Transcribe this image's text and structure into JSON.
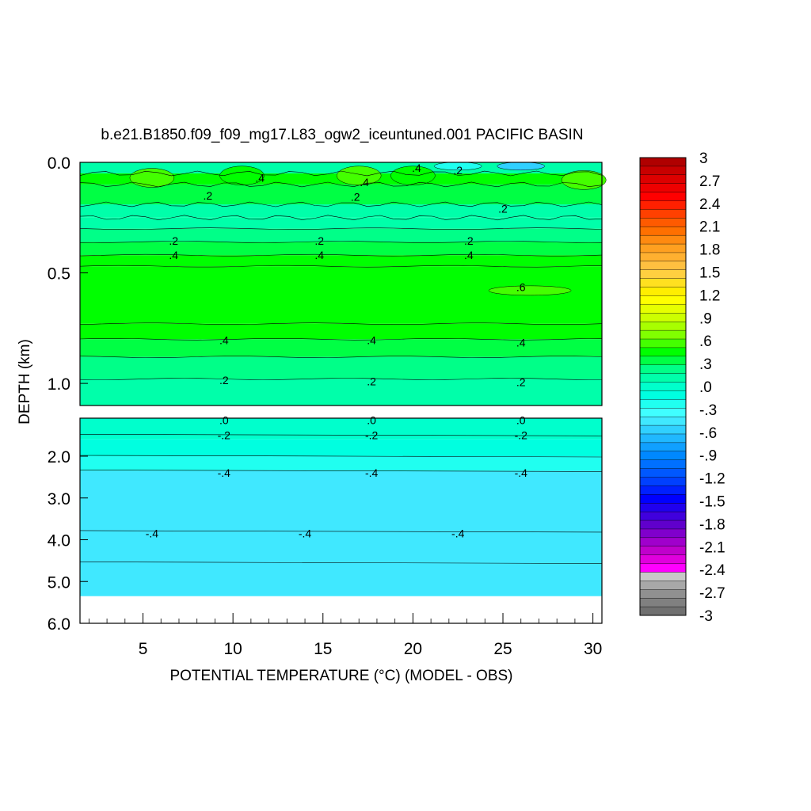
{
  "chart_data": {
    "type": "heatmap",
    "title": "b.e21.B1850.f09_f09_mg17.L83_ogw2_iceuntuned.001 PACIFIC BASIN",
    "xlabel": "POTENTIAL TEMPERATURE (°C) (MODEL - OBS)",
    "ylabel": "DEPTH (km)",
    "xlim": [
      1.5,
      30.5
    ],
    "x_ticks": [
      5,
      10,
      15,
      20,
      25,
      30
    ],
    "x_tick_labels": [
      "5",
      "10",
      "15",
      "20",
      "25",
      "30"
    ],
    "upper_panel": {
      "ylim": [
        0.0,
        1.1
      ],
      "y_ticks": [
        0.0,
        0.5,
        1.0
      ],
      "y_tick_labels": [
        "0.0",
        "0.5",
        "1.0"
      ]
    },
    "lower_panel": {
      "ylim": [
        1.0,
        6.0
      ],
      "y_ticks": [
        2.0,
        3.0,
        4.0,
        5.0,
        6.0
      ],
      "y_tick_labels": [
        "2.0",
        "3.0",
        "4.0",
        "5.0",
        "6.0"
      ]
    },
    "depth_bands": [
      {
        "top": 0.0,
        "bottom": 0.05,
        "value": 0.15
      },
      {
        "top": 0.05,
        "bottom": 0.1,
        "value": 0.45
      },
      {
        "top": 0.1,
        "bottom": 0.19,
        "value": 0.3
      },
      {
        "top": 0.19,
        "bottom": 0.25,
        "value": 0.1
      },
      {
        "top": 0.25,
        "bottom": 0.3,
        "value": 0.15
      },
      {
        "top": 0.3,
        "bottom": 0.36,
        "value": 0.2
      },
      {
        "top": 0.36,
        "bottom": 0.42,
        "value": 0.3
      },
      {
        "top": 0.42,
        "bottom": 0.47,
        "value": 0.4
      },
      {
        "top": 0.47,
        "bottom": 0.73,
        "value": 0.5
      },
      {
        "top": 0.73,
        "bottom": 0.8,
        "value": 0.45
      },
      {
        "top": 0.8,
        "bottom": 0.88,
        "value": 0.35
      },
      {
        "top": 0.88,
        "bottom": 0.98,
        "value": 0.25
      },
      {
        "top": 0.98,
        "bottom": 1.1,
        "value": 0.15
      },
      {
        "top": 1.1,
        "bottom": 1.6,
        "value": -0.05
      },
      {
        "top": 1.6,
        "bottom": 2.0,
        "value": -0.15
      },
      {
        "top": 2.0,
        "bottom": 2.35,
        "value": -0.25
      },
      {
        "top": 2.35,
        "bottom": 5.35,
        "value": -0.4
      }
    ],
    "warm_spots": [
      {
        "x": 5.5,
        "depth": 0.07,
        "value": 0.6
      },
      {
        "x": 10.5,
        "depth": 0.06,
        "value": 0.5
      },
      {
        "x": 17.0,
        "depth": 0.06,
        "value": 0.6
      },
      {
        "x": 20.0,
        "depth": 0.06,
        "value": 0.5
      },
      {
        "x": 29.5,
        "depth": 0.08,
        "value": 0.6
      },
      {
        "x": 26.5,
        "depth": 0.58,
        "value": 0.6
      }
    ],
    "cool_spots": [
      {
        "x": 26.0,
        "depth": 0.01,
        "value": -0.6
      },
      {
        "x": 22.5,
        "depth": 0.01,
        "value": -0.2
      }
    ],
    "contour_labels": [
      {
        "text": ".4",
        "x": 11.5,
        "depth": 0.07
      },
      {
        "text": ".4",
        "x": 17.3,
        "depth": 0.09
      },
      {
        "text": ".4",
        "x": 20.2,
        "depth": 0.025
      },
      {
        "text": ".2",
        "x": 22.5,
        "depth": 0.035
      },
      {
        "text": ".2",
        "x": 8.6,
        "depth": 0.15
      },
      {
        "text": ".2",
        "x": 16.8,
        "depth": 0.155
      },
      {
        "text": ".2",
        "x": 25.0,
        "depth": 0.21
      },
      {
        "text": ".2",
        "x": 6.7,
        "depth": 0.355
      },
      {
        "text": ".2",
        "x": 14.8,
        "depth": 0.355
      },
      {
        "text": ".2",
        "x": 23.1,
        "depth": 0.355
      },
      {
        "text": ".4",
        "x": 6.7,
        "depth": 0.42
      },
      {
        "text": ".4",
        "x": 14.8,
        "depth": 0.42
      },
      {
        "text": ".4",
        "x": 23.1,
        "depth": 0.42
      },
      {
        "text": ".6",
        "x": 26.0,
        "depth": 0.565
      },
      {
        "text": ".4",
        "x": 9.5,
        "depth": 0.805
      },
      {
        "text": ".4",
        "x": 17.7,
        "depth": 0.805
      },
      {
        "text": ".4",
        "x": 26.0,
        "depth": 0.815
      },
      {
        "text": ".2",
        "x": 9.5,
        "depth": 0.985
      },
      {
        "text": ".2",
        "x": 17.7,
        "depth": 0.99
      },
      {
        "text": ".2",
        "x": 26.0,
        "depth": 0.995
      },
      {
        "text": ".0",
        "x": 9.5,
        "depth": 1.15
      },
      {
        "text": ".0",
        "x": 17.7,
        "depth": 1.15
      },
      {
        "text": ".0",
        "x": 26.0,
        "depth": 1.15
      },
      {
        "text": "-.2",
        "x": 9.5,
        "depth": 1.5
      },
      {
        "text": "-.2",
        "x": 17.7,
        "depth": 1.5
      },
      {
        "text": "-.2",
        "x": 26.0,
        "depth": 1.5
      },
      {
        "text": "-.4",
        "x": 9.5,
        "depth": 2.4
      },
      {
        "text": "-.4",
        "x": 17.7,
        "depth": 2.4
      },
      {
        "text": "-.4",
        "x": 26.0,
        "depth": 2.4
      },
      {
        "text": "-.4",
        "x": 5.5,
        "depth": 3.85
      },
      {
        "text": "-.4",
        "x": 14.0,
        "depth": 3.85
      },
      {
        "text": "-.4",
        "x": 22.5,
        "depth": 3.85
      }
    ],
    "contour_lines": [
      0.05,
      0.1,
      0.19,
      0.25,
      0.3,
      0.36,
      0.42,
      0.47,
      0.73,
      0.8,
      0.88,
      0.98,
      1.5,
      2.0,
      2.35,
      3.8,
      4.55
    ],
    "colorbar": {
      "min": -3,
      "max": 3,
      "tick_labels": [
        "3",
        "2.7",
        "2.4",
        "2.1",
        "1.8",
        "1.5",
        "1.2",
        ".9",
        ".6",
        ".3",
        ".0",
        "-.3",
        "-.6",
        "-.9",
        "-1.2",
        "-1.5",
        "-1.8",
        "-2.1",
        "-2.4",
        "-2.7",
        "-3"
      ],
      "colors_top_to_bottom": [
        "#b00000",
        "#c80000",
        "#dd0000",
        "#ee0000",
        "#ff0000",
        "#ff2000",
        "#ff4000",
        "#ff5a00",
        "#ff7000",
        "#ff8a10",
        "#ffa020",
        "#ffb030",
        "#ffc040",
        "#ffd040",
        "#ffe020",
        "#ffee00",
        "#ffff00",
        "#e6ff00",
        "#ccff00",
        "#a8ff00",
        "#80ff00",
        "#44ff00",
        "#00ff00",
        "#00ff44",
        "#00ff88",
        "#00ffaa",
        "#00ffcc",
        "#00ffe0",
        "#20fff0",
        "#40ffff",
        "#40e8ff",
        "#30d0ff",
        "#20b8ff",
        "#10a0ff",
        "#0088ff",
        "#0070ff",
        "#0058ff",
        "#0040ff",
        "#0020ff",
        "#0000ff",
        "#2000ee",
        "#4000dd",
        "#6000cc",
        "#8000cc",
        "#a000cc",
        "#c000cc",
        "#e000dd",
        "#ff00ff",
        "#c8c8c8",
        "#a8a8a8",
        "#909090",
        "#808080",
        "#707070"
      ]
    }
  }
}
